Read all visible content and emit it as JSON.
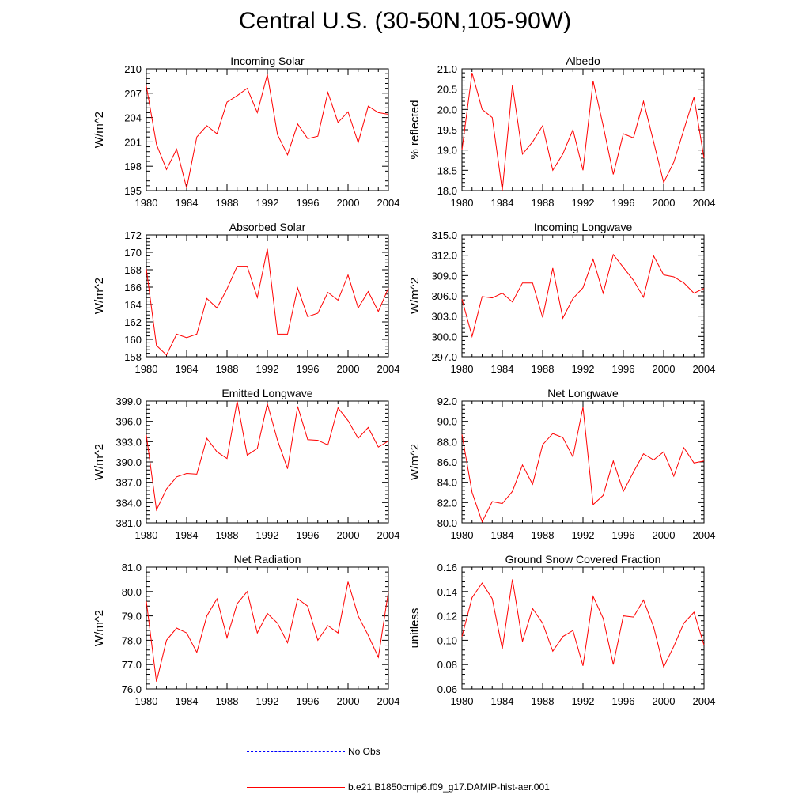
{
  "page_title": "Central U.S. (30-50N,105-90W)",
  "colors": {
    "model": "#ff0000",
    "obs": "#0000ff",
    "axis": "#000000"
  },
  "legend": [
    {
      "label": "No Obs",
      "style": "dashed",
      "color": "#0000ff"
    },
    {
      "label": "b.e21.B1850cmip6.f09_g17.DAMIP-hist-aer.001",
      "style": "solid",
      "color": "#ff0000"
    }
  ],
  "chart_data": [
    {
      "type": "line",
      "title": "Incoming Solar",
      "ylabel": "W/m^2",
      "xlim": [
        1980,
        2004
      ],
      "ylim": [
        195,
        210
      ],
      "x_ticks": [
        "1980",
        "1984",
        "1988",
        "1992",
        "1996",
        "2000",
        "2004"
      ],
      "y_ticks": [
        "195",
        "198",
        "201",
        "204",
        "207",
        "210"
      ],
      "x": [
        1980,
        1981,
        1982,
        1983,
        1984,
        1985,
        1986,
        1987,
        1988,
        1989,
        1990,
        1991,
        1992,
        1993,
        1994,
        1995,
        1996,
        1997,
        1998,
        1999,
        2000,
        2001,
        2002,
        2003,
        2004
      ],
      "series": [
        {
          "values": [
            207.9,
            200.7,
            197.6,
            200.1,
            195.3,
            201.6,
            203.0,
            202.0,
            205.9,
            206.7,
            207.6,
            204.6,
            209.3,
            201.9,
            199.4,
            203.2,
            201.4,
            201.7,
            207.1,
            203.4,
            204.7,
            200.9,
            205.4,
            204.6,
            204.4
          ]
        }
      ]
    },
    {
      "type": "line",
      "title": "Albedo",
      "ylabel": "% reflected",
      "xlim": [
        1980,
        2004
      ],
      "ylim": [
        18.0,
        21.0
      ],
      "x_ticks": [
        "1980",
        "1984",
        "1988",
        "1992",
        "1996",
        "2000",
        "2004"
      ],
      "y_ticks": [
        "18.0",
        "18.5",
        "19.0",
        "19.5",
        "20.0",
        "20.5",
        "21.0"
      ],
      "x": [
        1980,
        1981,
        1982,
        1983,
        1984,
        1985,
        1986,
        1987,
        1988,
        1989,
        1990,
        1991,
        1992,
        1993,
        1994,
        1995,
        1996,
        1997,
        1998,
        1999,
        2000,
        2001,
        2002,
        2003,
        2004
      ],
      "series": [
        {
          "values": [
            19.0,
            20.9,
            20.0,
            19.8,
            18.0,
            20.6,
            18.9,
            19.2,
            19.6,
            18.5,
            18.9,
            19.5,
            18.5,
            20.7,
            19.6,
            18.4,
            19.4,
            19.3,
            20.2,
            19.2,
            18.2,
            18.7,
            19.5,
            20.3,
            18.8
          ]
        }
      ]
    },
    {
      "type": "line",
      "title": "Absorbed Solar",
      "ylabel": "W/m^2",
      "xlim": [
        1980,
        2004
      ],
      "ylim": [
        158,
        172
      ],
      "x_ticks": [
        "1980",
        "1984",
        "1988",
        "1992",
        "1996",
        "2000",
        "2004"
      ],
      "y_ticks": [
        "158",
        "160",
        "162",
        "164",
        "166",
        "168",
        "170",
        "172"
      ],
      "x": [
        1980,
        1981,
        1982,
        1983,
        1984,
        1985,
        1986,
        1987,
        1988,
        1989,
        1990,
        1991,
        1992,
        1993,
        1994,
        1995,
        1996,
        1997,
        1998,
        1999,
        2000,
        2001,
        2002,
        2003,
        2004
      ],
      "series": [
        {
          "values": [
            168.1,
            159.3,
            158.2,
            160.6,
            160.2,
            160.6,
            164.7,
            163.6,
            165.8,
            168.4,
            168.4,
            164.8,
            170.4,
            160.6,
            160.6,
            165.9,
            162.6,
            163.0,
            165.4,
            164.5,
            167.4,
            163.6,
            165.5,
            163.2,
            165.9
          ]
        }
      ]
    },
    {
      "type": "line",
      "title": "Incoming Longwave",
      "ylabel": "W/m^2",
      "xlim": [
        1980,
        2004
      ],
      "ylim": [
        297.0,
        315.0
      ],
      "x_ticks": [
        "1980",
        "1984",
        "1988",
        "1992",
        "1996",
        "2000",
        "2004"
      ],
      "y_ticks": [
        "297.0",
        "300.0",
        "303.0",
        "306.0",
        "309.0",
        "312.0",
        "315.0"
      ],
      "x": [
        1980,
        1981,
        1982,
        1983,
        1984,
        1985,
        1986,
        1987,
        1988,
        1989,
        1990,
        1991,
        1992,
        1993,
        1994,
        1995,
        1996,
        1997,
        1998,
        1999,
        2000,
        2001,
        2002,
        2003,
        2004
      ],
      "series": [
        {
          "values": [
            305.5,
            300.0,
            305.9,
            305.7,
            306.4,
            305.1,
            307.9,
            307.9,
            302.8,
            310.1,
            302.7,
            305.6,
            307.2,
            311.4,
            306.4,
            312.1,
            310.2,
            308.3,
            305.8,
            311.9,
            309.1,
            308.8,
            307.9,
            306.4,
            307.1
          ]
        }
      ]
    },
    {
      "type": "line",
      "title": "Emitted Longwave",
      "ylabel": "W/m^2",
      "xlim": [
        1980,
        2004
      ],
      "ylim": [
        381.0,
        399.0
      ],
      "x_ticks": [
        "1980",
        "1984",
        "1988",
        "1992",
        "1996",
        "2000",
        "2004"
      ],
      "y_ticks": [
        "381.0",
        "384.0",
        "387.0",
        "390.0",
        "393.0",
        "396.0",
        "399.0"
      ],
      "x": [
        1980,
        1981,
        1982,
        1983,
        1984,
        1985,
        1986,
        1987,
        1988,
        1989,
        1990,
        1991,
        1992,
        1993,
        1994,
        1995,
        1996,
        1997,
        1998,
        1999,
        2000,
        2001,
        2002,
        2003,
        2004
      ],
      "series": [
        {
          "values": [
            394.0,
            382.9,
            386.0,
            387.8,
            388.3,
            388.2,
            393.5,
            391.5,
            390.5,
            399.0,
            391.0,
            392.0,
            398.6,
            393.2,
            389.0,
            398.2,
            393.3,
            393.2,
            392.5,
            398.0,
            396.1,
            393.5,
            395.1,
            392.2,
            393.1
          ]
        }
      ]
    },
    {
      "type": "line",
      "title": "Net Longwave",
      "ylabel": "W/m^2",
      "xlim": [
        1980,
        2004
      ],
      "ylim": [
        80.0,
        92.0
      ],
      "x_ticks": [
        "1980",
        "1984",
        "1988",
        "1992",
        "1996",
        "2000",
        "2004"
      ],
      "y_ticks": [
        "80.0",
        "82.0",
        "84.0",
        "86.0",
        "88.0",
        "90.0",
        "92.0"
      ],
      "x": [
        1980,
        1981,
        1982,
        1983,
        1984,
        1985,
        1986,
        1987,
        1988,
        1989,
        1990,
        1991,
        1992,
        1993,
        1994,
        1995,
        1996,
        1997,
        1998,
        1999,
        2000,
        2001,
        2002,
        2003,
        2004
      ],
      "series": [
        {
          "values": [
            88.7,
            83.0,
            80.1,
            82.1,
            81.9,
            83.1,
            85.7,
            83.8,
            87.7,
            88.8,
            88.4,
            86.5,
            91.4,
            81.8,
            82.7,
            86.1,
            83.1,
            85.0,
            86.8,
            86.2,
            87.0,
            84.6,
            87.4,
            85.9,
            86.1
          ]
        }
      ]
    },
    {
      "type": "line",
      "title": "Net Radiation",
      "ylabel": "W/m^2",
      "xlim": [
        1980,
        2004
      ],
      "ylim": [
        76.0,
        81.0
      ],
      "x_ticks": [
        "1980",
        "1984",
        "1988",
        "1992",
        "1996",
        "2000",
        "2004"
      ],
      "y_ticks": [
        "76.0",
        "77.0",
        "78.0",
        "79.0",
        "80.0",
        "81.0"
      ],
      "x": [
        1980,
        1981,
        1982,
        1983,
        1984,
        1985,
        1986,
        1987,
        1988,
        1989,
        1990,
        1991,
        1992,
        1993,
        1994,
        1995,
        1996,
        1997,
        1998,
        1999,
        2000,
        2001,
        2002,
        2003,
        2004
      ],
      "series": [
        {
          "values": [
            79.6,
            76.3,
            78.0,
            78.5,
            78.3,
            77.5,
            79.0,
            79.7,
            78.1,
            79.5,
            80.0,
            78.3,
            79.1,
            78.7,
            77.9,
            79.7,
            79.4,
            78.0,
            78.6,
            78.3,
            80.4,
            79.0,
            78.2,
            77.3,
            80.0
          ]
        }
      ]
    },
    {
      "type": "line",
      "title": "Ground Snow Covered Fraction",
      "ylabel": "unitless",
      "xlim": [
        1980,
        2004
      ],
      "ylim": [
        0.06,
        0.16
      ],
      "x_ticks": [
        "1980",
        "1984",
        "1988",
        "1992",
        "1996",
        "2000",
        "2004"
      ],
      "y_ticks": [
        "0.06",
        "0.08",
        "0.10",
        "0.12",
        "0.14",
        "0.16"
      ],
      "x": [
        1980,
        1981,
        1982,
        1983,
        1984,
        1985,
        1986,
        1987,
        1988,
        1989,
        1990,
        1991,
        1992,
        1993,
        1994,
        1995,
        1996,
        1997,
        1998,
        1999,
        2000,
        2001,
        2002,
        2003,
        2004
      ],
      "series": [
        {
          "values": [
            0.103,
            0.135,
            0.147,
            0.134,
            0.093,
            0.15,
            0.099,
            0.126,
            0.114,
            0.091,
            0.103,
            0.108,
            0.079,
            0.136,
            0.118,
            0.08,
            0.12,
            0.119,
            0.133,
            0.111,
            0.078,
            0.095,
            0.114,
            0.123,
            0.096
          ]
        }
      ]
    }
  ]
}
